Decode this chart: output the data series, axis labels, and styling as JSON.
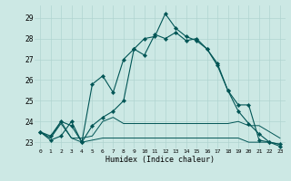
{
  "xlabel": "Humidex (Indice chaleur)",
  "bg_color": "#cce8e4",
  "line_color": "#005555",
  "grid_color": "#b0d4d0",
  "xlim": [
    -0.5,
    23.5
  ],
  "ylim": [
    22.7,
    29.6
  ],
  "yticks": [
    23,
    24,
    25,
    26,
    27,
    28,
    29
  ],
  "xticks": [
    0,
    1,
    2,
    3,
    4,
    5,
    6,
    7,
    8,
    9,
    10,
    11,
    12,
    13,
    14,
    15,
    16,
    17,
    18,
    19,
    20,
    21,
    22,
    23
  ],
  "series": [
    {
      "y": [
        23.5,
        23.1,
        23.3,
        24.0,
        23.0,
        25.8,
        26.2,
        25.4,
        27.0,
        27.5,
        28.0,
        28.1,
        29.2,
        28.5,
        28.1,
        27.9,
        27.5,
        26.7,
        25.5,
        24.8,
        24.8,
        23.1,
        23.0,
        22.8
      ],
      "marker": true,
      "lw": 0.8
    },
    {
      "y": [
        23.5,
        23.2,
        23.9,
        23.2,
        23.2,
        23.3,
        24.0,
        24.2,
        23.9,
        23.9,
        23.9,
        23.9,
        23.9,
        23.9,
        23.9,
        23.9,
        23.9,
        23.9,
        23.9,
        24.0,
        23.8,
        23.8,
        23.5,
        23.2
      ],
      "marker": false,
      "lw": 0.7
    },
    {
      "y": [
        23.5,
        23.2,
        24.0,
        23.2,
        23.0,
        23.1,
        23.2,
        23.2,
        23.2,
        23.2,
        23.2,
        23.2,
        23.2,
        23.2,
        23.2,
        23.2,
        23.2,
        23.2,
        23.2,
        23.2,
        23.0,
        23.0,
        23.0,
        22.9
      ],
      "marker": false,
      "lw": 0.7
    },
    {
      "y": [
        23.5,
        23.3,
        24.0,
        23.8,
        23.0,
        23.8,
        24.2,
        24.5,
        25.0,
        27.5,
        27.2,
        28.2,
        28.0,
        28.3,
        27.9,
        28.0,
        27.5,
        26.8,
        25.5,
        24.5,
        23.9,
        23.4,
        23.0,
        22.9
      ],
      "marker": true,
      "lw": 0.8
    }
  ]
}
